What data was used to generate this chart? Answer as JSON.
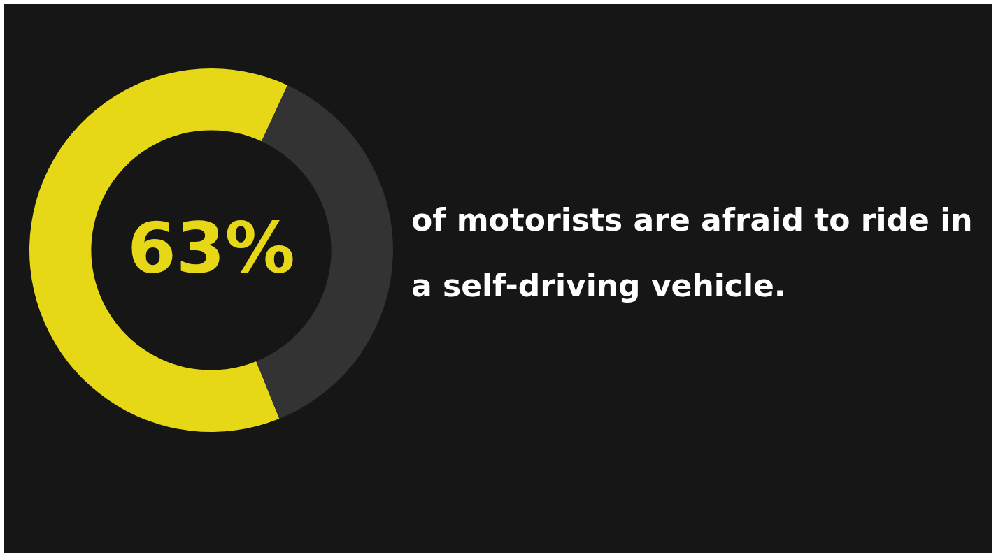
{
  "chart_data": {
    "type": "donut",
    "title": "of motorists are afraid to ride in a self-driving vehicle.",
    "categories": [
      null,
      null
    ],
    "values": [
      63,
      37
    ],
    "colors": [
      "#e6d817",
      "#333333"
    ],
    "value_labels": [
      "63%",
      null
    ],
    "legend": false
  }
}
